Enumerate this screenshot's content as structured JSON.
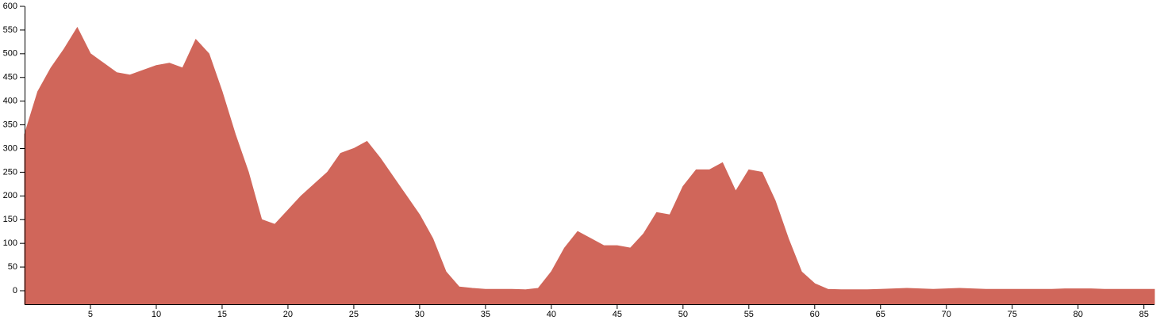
{
  "chart_data": {
    "type": "area",
    "color": "#d0665a",
    "x": [
      0,
      1,
      2,
      3,
      4,
      5,
      6,
      7,
      8,
      9,
      10,
      11,
      12,
      13,
      14,
      15,
      16,
      17,
      18,
      19,
      20,
      21,
      22,
      23,
      24,
      25,
      26,
      27,
      28,
      29,
      30,
      31,
      32,
      33,
      34,
      35,
      36,
      37,
      38,
      39,
      40,
      41,
      42,
      43,
      44,
      45,
      46,
      47,
      48,
      49,
      50,
      51,
      52,
      53,
      54,
      55,
      56,
      57,
      58,
      59,
      60,
      61,
      62,
      63,
      64,
      65,
      66,
      67,
      68,
      69,
      70,
      71,
      72,
      73,
      74,
      75,
      76,
      77,
      78,
      79,
      80,
      81,
      82,
      83,
      84,
      85,
      85.8
    ],
    "values": [
      330,
      420,
      470,
      510,
      555,
      500,
      480,
      460,
      455,
      465,
      475,
      480,
      470,
      530,
      500,
      420,
      330,
      250,
      150,
      140,
      170,
      200,
      225,
      250,
      290,
      300,
      315,
      280,
      240,
      200,
      160,
      110,
      40,
      8,
      5,
      3,
      3,
      3,
      2,
      5,
      40,
      90,
      125,
      110,
      95,
      95,
      90,
      120,
      165,
      160,
      220,
      255,
      255,
      270,
      210,
      255,
      250,
      190,
      110,
      40,
      15,
      3,
      2,
      2,
      2,
      3,
      4,
      5,
      4,
      3,
      4,
      5,
      4,
      3,
      3,
      3,
      3,
      3,
      3,
      4,
      4,
      4,
      3,
      3,
      3,
      3,
      3
    ],
    "xlim": [
      0,
      85.8
    ],
    "ylim": [
      -28.4,
      600
    ],
    "xticks": [
      5,
      10,
      15,
      20,
      25,
      30,
      35,
      40,
      45,
      50,
      55,
      60,
      65,
      70,
      75,
      80,
      85
    ],
    "yticks": [
      0,
      50,
      100,
      150,
      200,
      250,
      300,
      350,
      400,
      450,
      500,
      550,
      600
    ]
  }
}
